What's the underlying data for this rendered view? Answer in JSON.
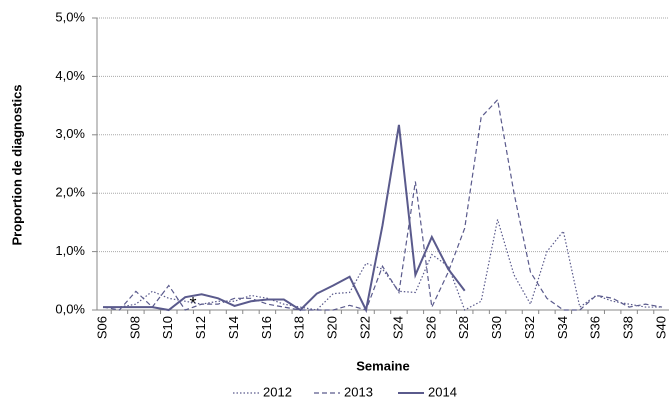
{
  "chart_data": {
    "type": "line",
    "y_label": "Proportion de diagnostics",
    "x_label": "Semaine",
    "annotation": "*",
    "categories": [
      "S06",
      null,
      "S08",
      null,
      "S10",
      null,
      "S12",
      null,
      "S14",
      null,
      "S16",
      null,
      "S18",
      null,
      "S20",
      null,
      "S22",
      null,
      "S24",
      null,
      "S26",
      null,
      "S28",
      null,
      "S30",
      null,
      "S32",
      null,
      "S34",
      null,
      "S36",
      null,
      "S38",
      null,
      "S40"
    ],
    "series": [
      {
        "name": "2012",
        "color": "#5a5a8c",
        "style": "dotted",
        "values": [
          0.05,
          0.05,
          0.1,
          0.32,
          0.2,
          0.15,
          0.1,
          0.15,
          0.15,
          0.25,
          0.2,
          0.1,
          0.05,
          0.0,
          0.28,
          0.3,
          0.8,
          0.7,
          0.32,
          0.3,
          0.95,
          0.75,
          0.0,
          0.15,
          1.55,
          0.6,
          0.1,
          1.0,
          1.35,
          0.05,
          0.25,
          0.15,
          0.1,
          0.05,
          0.05
        ]
      },
      {
        "name": "2013",
        "color": "#5a5a8c",
        "style": "dashed",
        "values": [
          0.05,
          0.0,
          0.32,
          0.05,
          0.42,
          0.0,
          0.1,
          0.1,
          0.2,
          0.2,
          0.1,
          0.05,
          0.0,
          0.0,
          0.0,
          0.08,
          0.0,
          0.75,
          0.3,
          2.2,
          0.05,
          0.65,
          1.4,
          3.3,
          3.6,
          2.0,
          0.65,
          0.2,
          0.0,
          0.0,
          0.25,
          0.2,
          0.05,
          0.1,
          0.05
        ]
      },
      {
        "name": "2014",
        "color": "#5a5a8c",
        "style": "solid",
        "values": [
          0.05,
          0.05,
          0.05,
          0.05,
          0.0,
          0.22,
          0.27,
          0.2,
          0.07,
          0.15,
          0.18,
          0.18,
          0.0,
          0.28,
          0.42,
          0.57,
          0.0,
          1.45,
          3.17,
          0.6,
          1.25,
          0.7,
          0.33,
          null,
          null,
          null,
          null,
          null,
          null,
          null,
          null,
          null,
          null,
          null,
          null
        ]
      }
    ],
    "ylim": [
      0,
      5
    ],
    "yticks": [
      {
        "value": 0,
        "label": "0,0%"
      },
      {
        "value": 1,
        "label": "1,0%"
      },
      {
        "value": 2,
        "label": "2,0%"
      },
      {
        "value": 3,
        "label": "3,0%"
      },
      {
        "value": 4,
        "label": "4,0%"
      },
      {
        "value": 5,
        "label": "5,0%"
      }
    ],
    "grid": true,
    "legend": "bottom"
  }
}
